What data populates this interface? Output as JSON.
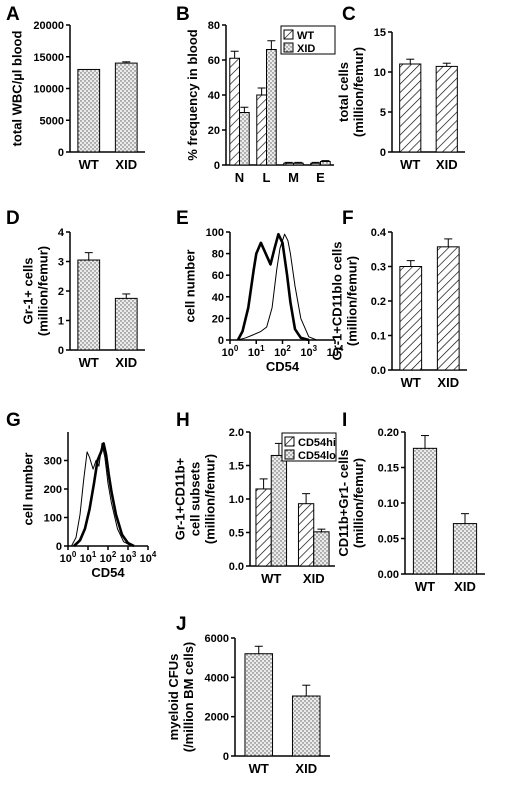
{
  "chart_data": [
    {
      "panel": "A",
      "type": "bar",
      "categories": [
        "WT",
        "XID"
      ],
      "values": [
        13000,
        14000
      ],
      "errors": [
        0,
        200
      ],
      "ylabel": "total WBC/µl blood",
      "ylim": [
        0,
        20000
      ],
      "yticks": [
        "0",
        "5000",
        "10000",
        "15000",
        "20000"
      ],
      "pattern": "dots"
    },
    {
      "panel": "B",
      "type": "bar",
      "categories": [
        "N",
        "L",
        "M",
        "E"
      ],
      "series": [
        {
          "name": "WT",
          "values": [
            61,
            40,
            1,
            1
          ],
          "errors": [
            4,
            4,
            0.5,
            0.5
          ],
          "pattern": "hatch"
        },
        {
          "name": "XID",
          "values": [
            30,
            66,
            1,
            2
          ],
          "errors": [
            3,
            5,
            0.5,
            0.5
          ],
          "pattern": "dots"
        }
      ],
      "ylabel": "% frequency in blood",
      "ylim": [
        0,
        80
      ],
      "yticks": [
        "0",
        "20",
        "40",
        "60",
        "80"
      ],
      "legend": "top-right"
    },
    {
      "panel": "C",
      "type": "bar",
      "categories": [
        "WT",
        "XID"
      ],
      "values": [
        11,
        10.7
      ],
      "errors": [
        0.6,
        0.4
      ],
      "ylabel": "total cells",
      "ylabel2": "(million/femur)",
      "ylim": [
        0,
        15
      ],
      "yticks": [
        "0",
        "5",
        "10",
        "15"
      ],
      "pattern": "hatch"
    },
    {
      "panel": "D",
      "type": "bar",
      "categories": [
        "WT",
        "XID"
      ],
      "values": [
        3.05,
        1.75
      ],
      "errors": [
        0.25,
        0.15
      ],
      "ylabel": "Gr-1+ cells",
      "ylabel2": "(million/femur)",
      "ylim": [
        0,
        4
      ],
      "yticks": [
        "0",
        "1",
        "2",
        "3",
        "4"
      ],
      "pattern": "dots"
    },
    {
      "panel": "E",
      "type": "line",
      "ylabel": "cell number",
      "xlabel": "CD54",
      "ylim": [
        0,
        100
      ],
      "xlim": [
        1,
        10000
      ],
      "yticks": [
        "0",
        "20",
        "40",
        "60",
        "80",
        "100"
      ],
      "series": [
        {
          "name": "thick",
          "x": [
            2,
            3,
            5,
            8,
            10,
            15,
            25,
            35,
            50,
            70,
            100,
            150,
            200,
            300,
            500,
            1000
          ],
          "y": [
            0,
            8,
            30,
            65,
            80,
            90,
            78,
            70,
            85,
            98,
            90,
            60,
            35,
            10,
            2,
            0
          ]
        },
        {
          "name": "thin",
          "x": [
            2,
            4,
            8,
            15,
            25,
            40,
            60,
            80,
            120,
            160,
            200,
            300,
            500,
            1000,
            2000
          ],
          "y": [
            0,
            2,
            5,
            8,
            12,
            30,
            65,
            85,
            98,
            92,
            80,
            50,
            20,
            3,
            0
          ]
        }
      ]
    },
    {
      "panel": "F",
      "type": "bar",
      "categories": [
        "WT",
        "XID"
      ],
      "values": [
        0.3,
        0.357
      ],
      "errors": [
        0.017,
        0.023
      ],
      "ylabel": "Gr-1+CD11blo cells",
      "ylabel2": "(million/femur)",
      "ylim": [
        0,
        0.4
      ],
      "yticks": [
        "0.0",
        "0.1",
        "0.2",
        "0.3",
        "0.4"
      ],
      "pattern": "hatch"
    },
    {
      "panel": "G",
      "type": "line",
      "ylabel": "cell number",
      "xlabel": "CD54",
      "ylim": [
        0,
        400
      ],
      "xlim": [
        1,
        10000
      ],
      "yticks": [
        "0",
        "100",
        "200",
        "300"
      ],
      "series": [
        {
          "name": "thin",
          "x": [
            1.5,
            2.5,
            4,
            6,
            9,
            12,
            18,
            25,
            35,
            50,
            70,
            100,
            150,
            300,
            600,
            1500
          ],
          "y": [
            0,
            30,
            110,
            230,
            330,
            310,
            270,
            300,
            280,
            360,
            310,
            220,
            150,
            60,
            15,
            0
          ]
        },
        {
          "name": "thick",
          "x": [
            2,
            4,
            7,
            12,
            20,
            30,
            45,
            60,
            80,
            110,
            150,
            250,
            500,
            1000,
            2000
          ],
          "y": [
            0,
            20,
            60,
            130,
            220,
            300,
            330,
            360,
            320,
            250,
            190,
            110,
            40,
            10,
            0
          ]
        }
      ]
    },
    {
      "panel": "H",
      "type": "bar",
      "categories": [
        "WT",
        "XID"
      ],
      "series": [
        {
          "name": "CD54hi",
          "values": [
            1.15,
            0.93
          ],
          "errors": [
            0.15,
            0.15
          ],
          "pattern": "hatch"
        },
        {
          "name": "CD54lo",
          "values": [
            1.65,
            0.51
          ],
          "errors": [
            0.18,
            0.04
          ],
          "pattern": "dots"
        }
      ],
      "ylabel": "Gr-1+CD11b+",
      "ylabel2": "cell subsets",
      "ylabel3": "(million/femur)",
      "ylim": [
        0,
        2.0
      ],
      "yticks": [
        "0.0",
        "0.5",
        "1.0",
        "1.5",
        "2.0"
      ],
      "legend": "top-right"
    },
    {
      "panel": "I",
      "type": "bar",
      "categories": [
        "WT",
        "XID"
      ],
      "values": [
        0.177,
        0.071
      ],
      "errors": [
        0.018,
        0.014
      ],
      "ylabel": "CD11b+Gr1- cells",
      "ylabel2": "(million/femur)",
      "ylim": [
        0,
        0.2
      ],
      "yticks": [
        "0.00",
        "0.05",
        "0.10",
        "0.15",
        "0.20"
      ],
      "pattern": "dots"
    },
    {
      "panel": "J",
      "type": "bar",
      "categories": [
        "WT",
        "XID"
      ],
      "values": [
        5200,
        3050
      ],
      "errors": [
        380,
        550
      ],
      "ylabel": "myeloid CFUs",
      "ylabel2": "(/million BM cells)",
      "ylim": [
        0,
        6000
      ],
      "yticks": [
        "0",
        "2000",
        "4000",
        "6000"
      ],
      "pattern": "dots"
    }
  ]
}
